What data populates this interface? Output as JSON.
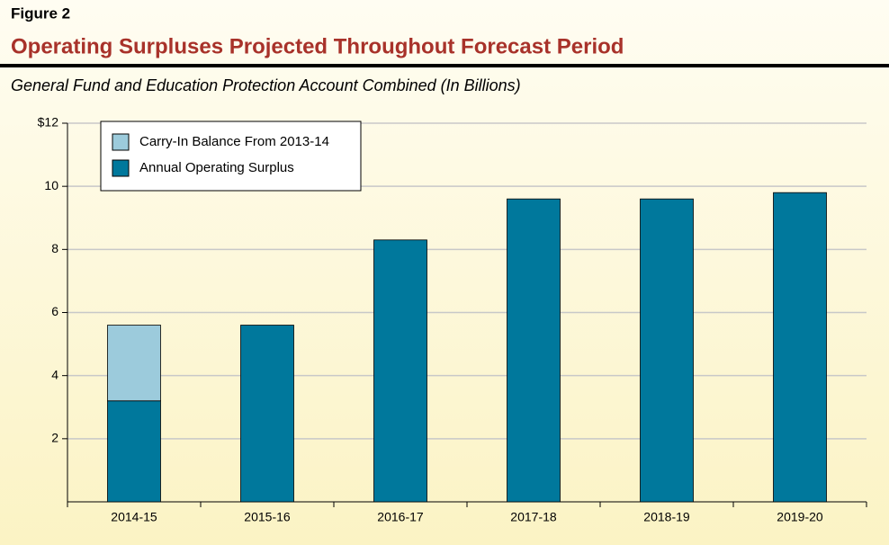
{
  "chart_data": {
    "type": "bar",
    "stacked": true,
    "figure_label": "Figure 2",
    "title": "Operating Surpluses Projected Throughout Forecast Period",
    "subtitle": "General Fund and Education Protection Account Combined (In Billions)",
    "categories": [
      "2014-15",
      "2015-16",
      "2016-17",
      "2017-18",
      "2018-19",
      "2019-20"
    ],
    "series": [
      {
        "name": "Carry-In Balance From 2013-14",
        "color": "#9ccbdc",
        "values": [
          2.4,
          null,
          null,
          null,
          null,
          null
        ]
      },
      {
        "name": "Annual Operating Surplus",
        "color": "#00789c",
        "values": [
          3.2,
          5.6,
          8.3,
          9.6,
          9.6,
          9.8
        ]
      }
    ],
    "ylim": [
      0,
      12
    ],
    "yticks": [
      2,
      4,
      6,
      8,
      10,
      {
        "value": 12,
        "label": "$12"
      }
    ],
    "grid": true,
    "legend": "top-left"
  }
}
